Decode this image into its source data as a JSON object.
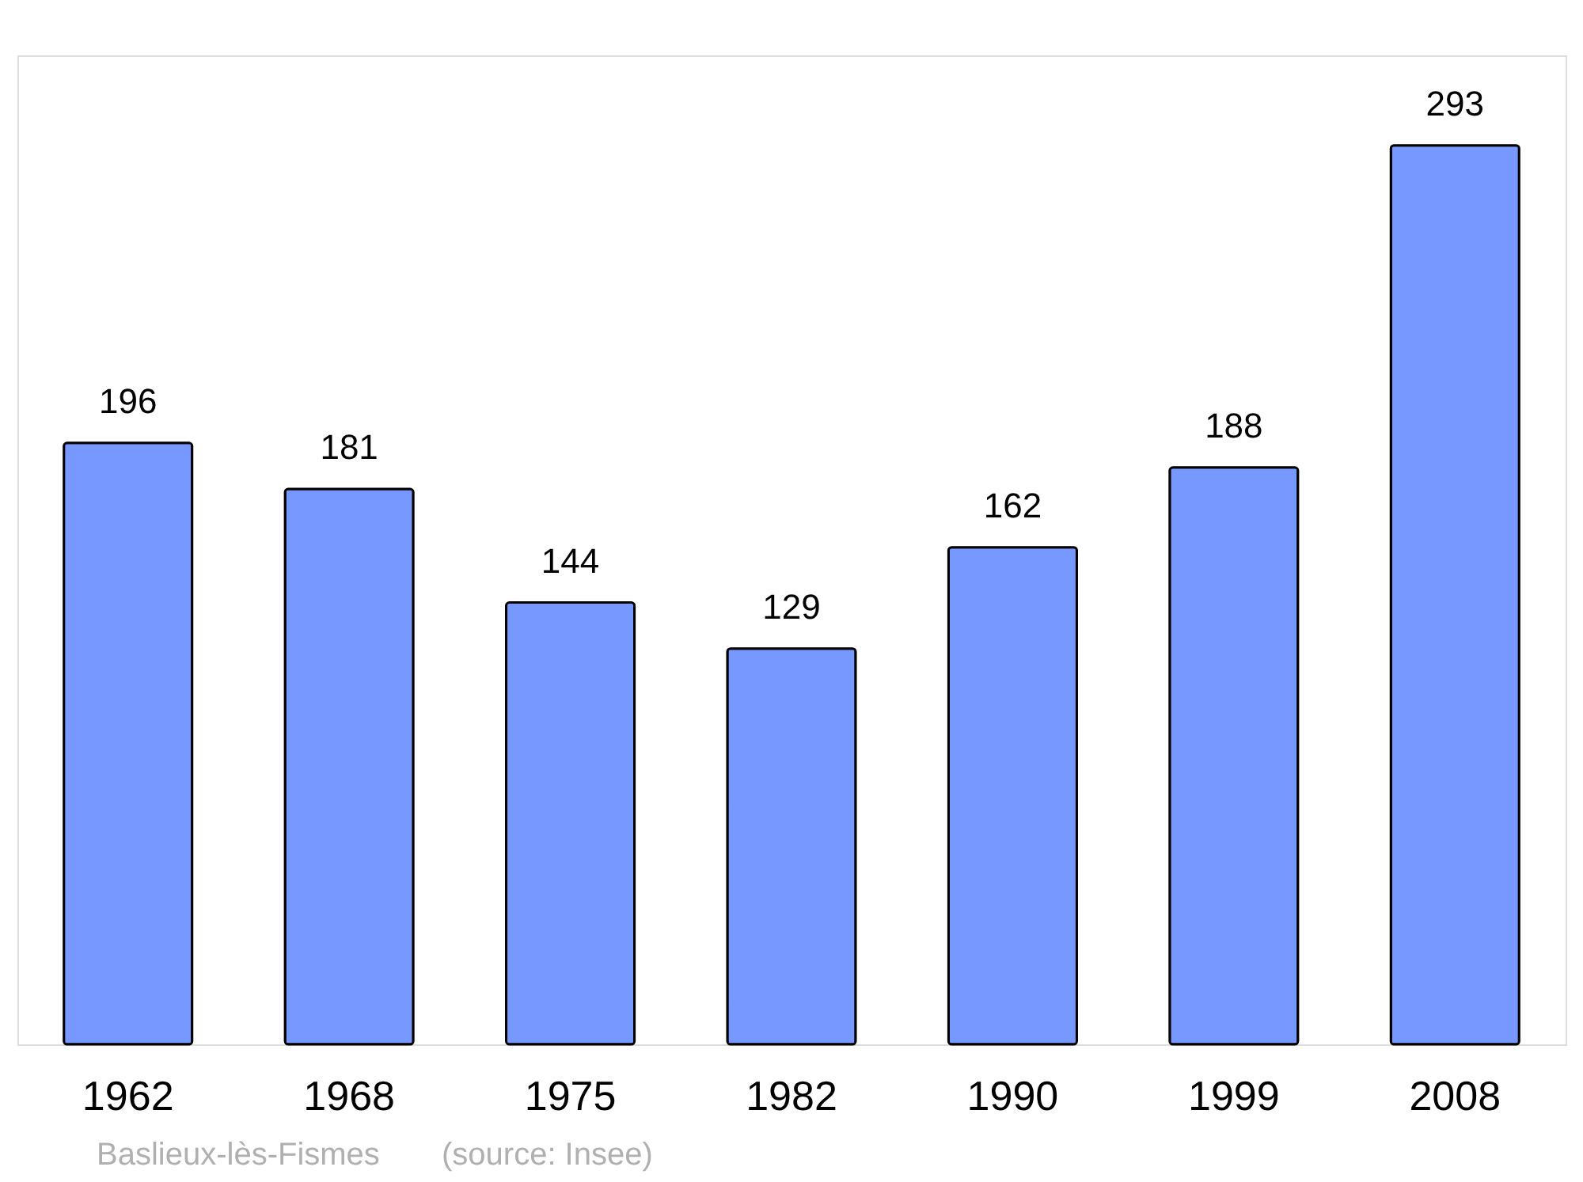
{
  "chart_data": {
    "type": "bar",
    "categories": [
      "1962",
      "1968",
      "1975",
      "1982",
      "1990",
      "1999",
      "2008"
    ],
    "values": [
      196,
      181,
      144,
      129,
      162,
      188,
      293
    ],
    "color": "#7799ff",
    "data_labels": true,
    "annotations": [
      "Baslieux-lès-Fismes",
      "(source: Insee)"
    ]
  }
}
